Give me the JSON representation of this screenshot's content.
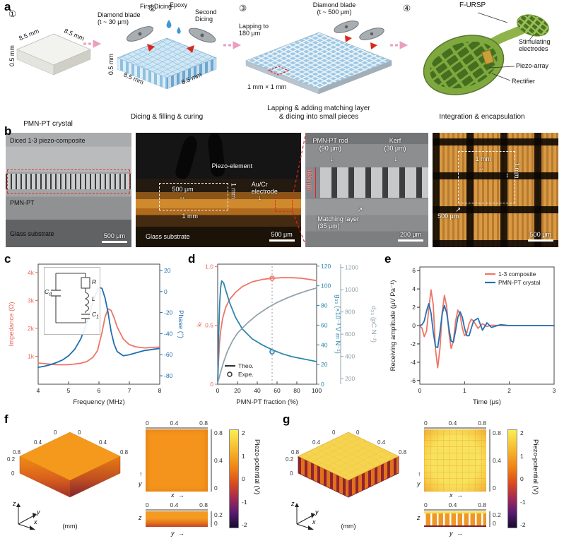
{
  "icons": {
    "h_arrow": "↔",
    "v_arrow": "↕",
    "down_arrow": "↓",
    "up_arrow": "↑",
    "ne_arrow": "↗",
    "right_arrow": "→"
  },
  "panels": {
    "a": "a",
    "b": "b",
    "c": "c",
    "d": "d",
    "e": "e",
    "f": "f",
    "g": "g"
  },
  "panel_a": {
    "steps": [
      {
        "num": "①",
        "caption": "PMN-PT crystal",
        "top_left": "8.5 mm",
        "top_right": "8.5 mm",
        "height": "0.5 mm"
      },
      {
        "num": "②",
        "caption": "Dicing & filling & curing",
        "blade": "Diamond blade\n(t ~ 30 μm)",
        "first": "First Dicing",
        "epoxy": "Epoxy",
        "second": "Second Dicing",
        "bottom_left": "8.5 mm",
        "bottom_right": "8.5 mm",
        "height": "0.5 mm"
      },
      {
        "num": "③",
        "caption": "Lapping & adding matching layer\n& dicing into small pieces",
        "blade": "Diamond blade\n(t ~ 500 μm)",
        "lapping": "Lapping to\n180 μm",
        "unit": "1 mm × 1 mm"
      },
      {
        "num": "④",
        "caption": "Integration & encapsulation",
        "device": "F-URSP",
        "stim": "Stimulating\nelectrodes",
        "piezo": "Piezo-array",
        "rectifier": "Rectifier"
      }
    ]
  },
  "panel_b": {
    "b1": {
      "title": "Diced 1-3 piezo-composite",
      "mid": "PMN-PT",
      "bottom": "Glass substrate",
      "scale": "500 μm"
    },
    "b2": {
      "piezo": "Piezo-element",
      "w500": "500 μm",
      "h1": "1 mm",
      "v1": "1 mm",
      "electrode": "Au/Cr\nelectrode",
      "glass": "Glass substrate",
      "scale": "500 μm"
    },
    "b3": {
      "rod": "PMN-PT rod\n(90 μm)",
      "kerf": "Kerf\n(30 μm)",
      "h180": "180 μm",
      "matching": "Matching layer\n(35 μm)",
      "scale": "200 μm"
    },
    "b4": {
      "h1": "1 mm",
      "v1": "1 mm",
      "w500": "500 μm",
      "scale": "500 μm"
    }
  },
  "chart_c_inset": {
    "c1": "C",
    "c1s": "d",
    "r": "R",
    "l": "L",
    "c2": "C",
    "c2s": "1"
  },
  "panel_f": {
    "plot3d": {
      "ticks_left": [
        "0",
        "0.4",
        "0.8"
      ],
      "ticks_right": [
        "0",
        "0.4",
        "0.8"
      ],
      "ticks_z": [
        "0.2",
        "0"
      ],
      "axis_x": "x",
      "axis_y": "y",
      "axis_z": "z",
      "unit": "(mm)"
    },
    "topview": {
      "ticks_top": [
        "0",
        "0.4",
        "0.8"
      ],
      "ticks_right": [
        "0.8",
        "0.4",
        "0"
      ],
      "axis_x": "x",
      "axis_y": "y"
    },
    "strip": {
      "ticks_top": [
        "0",
        "0.4",
        "0.8"
      ],
      "ticks_right": [
        "0.2",
        "0"
      ],
      "axis_y": "y",
      "axis_z": "z"
    },
    "colorbar": {
      "label": "Piezo-potential (V)",
      "ticks": [
        "2",
        "1",
        "0",
        "-1",
        "-2"
      ]
    }
  },
  "panel_g": {
    "plot3d": {
      "ticks_left": [
        "0",
        "0.4",
        "0.8"
      ],
      "ticks_right": [
        "0",
        "0.4",
        "0.8"
      ],
      "ticks_z": [
        "0.2",
        "0"
      ],
      "axis_x": "x",
      "axis_y": "y",
      "axis_z": "z",
      "unit": "(mm)"
    },
    "topview": {
      "ticks_top": [
        "0",
        "0.4",
        "0.8"
      ],
      "ticks_right": [
        "0.8",
        "0.4",
        "0"
      ],
      "axis_x": "x",
      "axis_y": "y"
    },
    "strip": {
      "ticks_top": [
        "0",
        "0.4",
        "0.8"
      ],
      "ticks_right": [
        "0.2",
        "0"
      ],
      "axis_y": "y",
      "axis_z": "z"
    },
    "colorbar": {
      "label": "Piezo-potential (V)",
      "ticks": [
        "2",
        "1",
        "0",
        "-1",
        "-2"
      ]
    }
  },
  "chart_data": [
    {
      "id": "c",
      "type": "line",
      "xlabel": "Frequency (MHz)",
      "xlim": [
        4,
        8
      ],
      "xticks": [
        4,
        5,
        6,
        7,
        8
      ],
      "axes": [
        {
          "side": "left",
          "label": "Impedance (Ω)",
          "color": "#e8695c",
          "lim": [
            0,
            4300
          ],
          "ticks": [
            1000,
            2000,
            3000,
            4000
          ],
          "tick_labels": [
            "1k",
            "2k",
            "3k",
            "4k"
          ]
        },
        {
          "side": "right",
          "label": "Phase (°)",
          "color": "#1f6eb0",
          "lim": [
            -88,
            26
          ],
          "ticks": [
            20,
            0,
            -20,
            -40,
            -60,
            -80
          ]
        }
      ],
      "series": [
        {
          "name": "Impedance",
          "axis": 0,
          "color": "#ee7567",
          "x": [
            4,
            4.2,
            4.4,
            4.6,
            4.8,
            5,
            5.2,
            5.4,
            5.6,
            5.8,
            5.95,
            6.1,
            6.2,
            6.3,
            6.4,
            6.5,
            6.6,
            6.8,
            7,
            7.2,
            7.5,
            8
          ],
          "y": [
            760,
            735,
            715,
            700,
            695,
            700,
            720,
            750,
            810,
            960,
            1200,
            1850,
            2400,
            2700,
            2640,
            2380,
            2050,
            1620,
            1420,
            1340,
            1300,
            1330
          ]
        },
        {
          "name": "Phase",
          "axis": 1,
          "color": "#1f6eb0",
          "x": [
            4,
            4.2,
            4.4,
            4.6,
            4.8,
            5,
            5.2,
            5.4,
            5.6,
            5.8,
            5.9,
            6,
            6.1,
            6.2,
            6.3,
            6.4,
            6.5,
            6.6,
            6.8,
            7,
            7.5,
            8
          ],
          "y": [
            -72,
            -71,
            -69.5,
            -67.5,
            -65,
            -61,
            -55,
            -45,
            -30,
            -10,
            -2,
            4,
            3,
            -6,
            -20,
            -38,
            -50,
            -57,
            -61,
            -60,
            -56,
            -54
          ]
        }
      ]
    },
    {
      "id": "d",
      "type": "line",
      "xlabel": "PMN-PT fraction (%)",
      "xlim": [
        0,
        100
      ],
      "xticks": [
        0,
        20,
        40,
        60,
        80,
        100
      ],
      "vline": 55,
      "axes": [
        {
          "side": "left",
          "label": "kₜ",
          "color": "#e8695c",
          "lim": [
            0,
            1.02
          ],
          "ticks": [
            0,
            0.5,
            1
          ],
          "tick_labels": [
            "0",
            "0.5",
            "1.0"
          ]
        },
        {
          "side": "right",
          "label": "g₃₃ (×10⁻³ V m N⁻¹)",
          "color": "#2e86ad",
          "lim": [
            0,
            122
          ],
          "ticks": [
            0,
            20,
            40,
            60,
            80,
            100,
            120
          ]
        },
        {
          "side": "right2",
          "label": "d₃₃ (pC N⁻¹)",
          "color": "#93a4ad",
          "lim": [
            150,
            1230
          ],
          "ticks": [
            200,
            400,
            600,
            800,
            1000,
            1200
          ]
        }
      ],
      "series": [
        {
          "name": "kt",
          "axis": 0,
          "color": "#ee7567",
          "x": [
            0,
            1,
            2,
            3,
            5,
            8,
            12,
            18,
            25,
            35,
            45,
            55,
            65,
            75,
            85,
            100
          ],
          "y": [
            0.02,
            0.22,
            0.36,
            0.45,
            0.56,
            0.65,
            0.72,
            0.78,
            0.83,
            0.87,
            0.89,
            0.9,
            0.905,
            0.905,
            0.9,
            0.88
          ]
        },
        {
          "name": "g33",
          "axis": 1,
          "color": "#2e86ad",
          "x": [
            0,
            1,
            2,
            3,
            4,
            6,
            8,
            12,
            18,
            25,
            35,
            45,
            55,
            65,
            75,
            85,
            100
          ],
          "y": [
            0,
            50,
            82,
            98,
            105,
            103,
            96,
            83,
            68,
            56,
            46,
            40,
            35,
            31,
            28,
            26,
            23
          ]
        },
        {
          "name": "d33",
          "axis": 2,
          "color": "#93a4ad",
          "x": [
            0,
            3,
            6,
            10,
            15,
            20,
            30,
            40,
            50,
            60,
            70,
            80,
            90,
            100
          ],
          "y": [
            160,
            260,
            350,
            450,
            540,
            610,
            700,
            775,
            835,
            885,
            925,
            960,
            990,
            1015
          ]
        }
      ],
      "points": [
        {
          "axis": 0,
          "x": 55,
          "y": 0.9,
          "color": "#ee7567"
        },
        {
          "axis": 1,
          "x": 55,
          "y": 33,
          "color": "#2e86ad"
        }
      ],
      "legend": [
        {
          "label": "Theo.",
          "type": "line",
          "color": "#333"
        },
        {
          "label": "Expe.",
          "type": "circle",
          "color": "#333"
        }
      ],
      "legend_pos": "bl"
    },
    {
      "id": "e",
      "type": "line",
      "xlabel": "Time (μs)",
      "xlim": [
        0,
        3
      ],
      "xticks": [
        0,
        1,
        2,
        3
      ],
      "x": [
        0,
        0.05,
        0.1,
        0.15,
        0.2,
        0.25,
        0.3,
        0.35,
        0.4,
        0.45,
        0.5,
        0.55,
        0.6,
        0.65,
        0.7,
        0.75,
        0.8,
        0.85,
        0.9,
        0.95,
        1,
        1.05,
        1.1,
        1.15,
        1.2,
        1.3,
        1.4,
        1.5,
        1.6,
        1.8,
        2,
        2.2,
        2.5,
        3
      ],
      "axes": [
        {
          "side": "left",
          "label": "Receiving amplitude (μV Pa⁻¹)",
          "color": "#222",
          "lim": [
            -6.4,
            6.4
          ],
          "ticks": [
            -6,
            -4,
            -2,
            0,
            2,
            4,
            6
          ]
        }
      ],
      "series": [
        {
          "name": "1-3 composite",
          "axis": 0,
          "color": "#ee7567",
          "y": [
            0,
            -0.3,
            -1.2,
            -0.6,
            1.8,
            3.9,
            2.3,
            -2.6,
            -4.6,
            -2.5,
            1.5,
            3.3,
            2.1,
            -0.8,
            -2.5,
            -1.7,
            0.5,
            1.7,
            1.2,
            -0.3,
            -1.1,
            -0.8,
            0.2,
            0.7,
            0.5,
            -0.3,
            0.2,
            -0.1,
            0.05,
            0,
            0,
            0,
            0,
            0
          ]
        },
        {
          "name": "PMN-PT crystal",
          "axis": 0,
          "color": "#2272b4",
          "y": [
            0,
            0.1,
            0.5,
            1.6,
            2.4,
            1.4,
            -0.7,
            -2.3,
            -2.4,
            -0.7,
            1.3,
            2.2,
            1.4,
            -0.3,
            -1.7,
            -1.8,
            -0.5,
            0.9,
            1.5,
            0.9,
            -0.3,
            -1.1,
            -1.1,
            -0.3,
            0.5,
            0.8,
            -0.5,
            0.3,
            -0.2,
            0.1,
            0,
            0,
            0,
            0
          ]
        }
      ],
      "legend": [
        {
          "label": "1-3 composite",
          "type": "line",
          "color": "#ee7567"
        },
        {
          "label": "PMN-PT crystal",
          "type": "line",
          "color": "#2272b4"
        }
      ],
      "legend_pos": "tr"
    },
    {
      "id": "f",
      "type": "heatmap",
      "label": "Piezo-potential (V)",
      "x_range_mm": [
        0,
        0.8
      ],
      "y_range_mm": [
        0,
        0.8
      ],
      "z_range_mm": [
        0,
        0.2
      ],
      "value_range": [
        -2,
        2
      ]
    },
    {
      "id": "g",
      "type": "heatmap",
      "label": "Piezo-potential (V)",
      "x_range_mm": [
        0,
        0.8
      ],
      "y_range_mm": [
        0,
        0.8
      ],
      "z_range_mm": [
        0,
        0.2
      ],
      "value_range": [
        -2,
        2
      ]
    }
  ]
}
